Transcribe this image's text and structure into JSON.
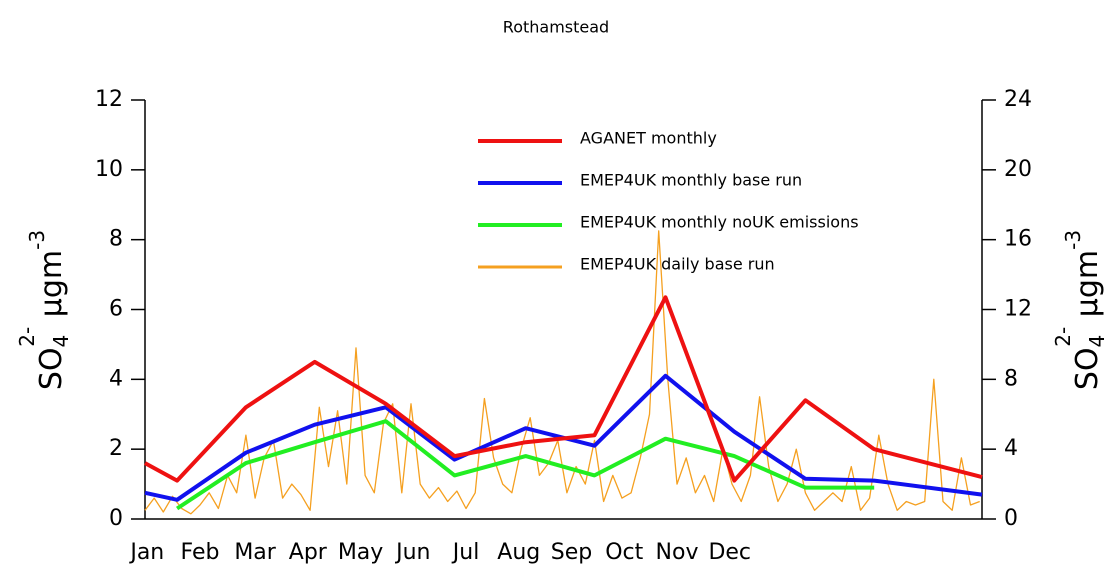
{
  "chart_data": {
    "type": "line",
    "title": "Rothamstead",
    "ylabel": [
      "SO",
      "4",
      "2-",
      " µgm",
      "-3"
    ],
    "y2label": [
      "SO",
      "4",
      "2-",
      " µgm",
      "-3"
    ],
    "xlim": [
      0,
      365
    ],
    "xticks": [
      {
        "value": 1,
        "label": "Jan"
      },
      {
        "value": 24,
        "label": "Feb"
      },
      {
        "value": 48,
        "label": "Mar"
      },
      {
        "value": 71,
        "label": "Apr"
      },
      {
        "value": 94,
        "label": "May"
      },
      {
        "value": 117,
        "label": "Jun"
      },
      {
        "value": 140,
        "label": "Jul"
      },
      {
        "value": 163,
        "label": "Aug"
      },
      {
        "value": 186,
        "label": "Sep"
      },
      {
        "value": 209,
        "label": "Oct"
      },
      {
        "value": 232,
        "label": "Nov"
      },
      {
        "value": 255,
        "label": "Dec"
      }
    ],
    "ylim": [
      0,
      12
    ],
    "yticks": [
      0,
      2,
      4,
      6,
      8,
      10,
      12
    ],
    "y2lim": [
      0,
      24
    ],
    "y2ticks": [
      0,
      4,
      8,
      12,
      16,
      20,
      24
    ],
    "series": [
      {
        "name": "AGANET monthly",
        "color": "#ee1111",
        "width": 4,
        "x": [
          0,
          14,
          44,
          74,
          105,
          135,
          166,
          196,
          227,
          257,
          288,
          318,
          365
        ],
        "values": [
          1.6,
          1.1,
          3.2,
          4.5,
          3.3,
          1.8,
          2.2,
          2.4,
          6.35,
          1.1,
          3.4,
          2.0,
          1.2
        ]
      },
      {
        "name": "EMEP4UK monthly base run",
        "color": "#1111ee",
        "width": 4,
        "x": [
          0,
          14,
          44,
          74,
          105,
          135,
          166,
          196,
          227,
          257,
          288,
          318,
          365
        ],
        "values": [
          0.75,
          0.55,
          1.9,
          2.7,
          3.2,
          1.7,
          2.6,
          2.1,
          4.1,
          2.5,
          1.15,
          1.1,
          0.7
        ]
      },
      {
        "name": "EMEP4UK monthly noUK emissions",
        "color": "#22ee22",
        "width": 4,
        "x": [
          0,
          14,
          44,
          74,
          105,
          135,
          166,
          196,
          227,
          257,
          288,
          318,
          365
        ],
        "values": [
          null,
          0.3,
          1.6,
          2.2,
          2.8,
          1.25,
          1.8,
          1.25,
          2.3,
          1.8,
          0.9,
          0.9,
          null
        ]
      },
      {
        "name": "EMEP4UK daily base run",
        "color": "#f5a020",
        "width": 1.3,
        "axis": "y2",
        "x": [
          0,
          4,
          8,
          12,
          16,
          20,
          24,
          28,
          32,
          36,
          40,
          44,
          48,
          52,
          56,
          60,
          64,
          68,
          72,
          76,
          80,
          84,
          88,
          92,
          96,
          100,
          104,
          108,
          112,
          116,
          120,
          124,
          128,
          132,
          136,
          140,
          144,
          148,
          152,
          156,
          160,
          164,
          168,
          172,
          176,
          180,
          184,
          188,
          192,
          196,
          200,
          204,
          208,
          212,
          216,
          220,
          224,
          228,
          232,
          236,
          240,
          244,
          248,
          252,
          256,
          260,
          264,
          268,
          272,
          276,
          280,
          284,
          288,
          292,
          296,
          300,
          304,
          308,
          312,
          316,
          320,
          324,
          328,
          332,
          336,
          340,
          344,
          348,
          352,
          356,
          360,
          364
        ],
        "values": [
          0.5,
          1.2,
          0.4,
          1.3,
          0.6,
          0.3,
          0.8,
          1.5,
          0.6,
          2.5,
          1.5,
          4.8,
          1.2,
          3.5,
          4.5,
          1.2,
          2.0,
          1.4,
          0.5,
          6.4,
          3.0,
          6.2,
          2.0,
          9.8,
          2.5,
          1.5,
          5.5,
          6.6,
          1.5,
          6.6,
          2.0,
          1.2,
          1.8,
          1.0,
          1.6,
          0.6,
          1.5,
          6.9,
          3.5,
          2.0,
          1.5,
          4.0,
          5.8,
          2.5,
          3.2,
          4.5,
          1.5,
          3.0,
          2.0,
          4.5,
          1.0,
          2.5,
          1.2,
          1.5,
          3.5,
          6.0,
          16.5,
          8.0,
          2.0,
          3.5,
          1.5,
          2.5,
          1.0,
          4.0,
          2.0,
          1.0,
          2.5,
          7.0,
          3.0,
          1.0,
          2.0,
          4.0,
          1.5,
          0.5,
          1.0,
          1.5,
          1.0,
          3.0,
          0.5,
          1.2,
          4.8,
          2.0,
          0.5,
          1.0,
          0.8,
          1.0,
          8.0,
          1.0,
          0.5,
          3.5,
          0.8,
          1.0
        ]
      }
    ]
  }
}
